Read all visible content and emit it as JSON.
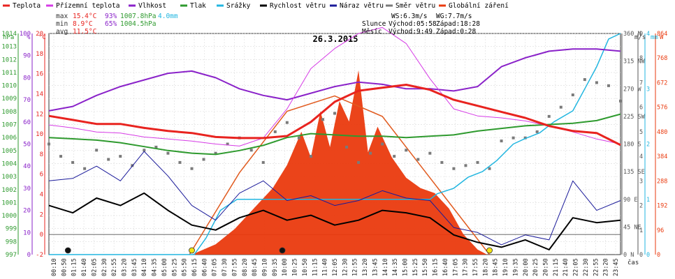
{
  "legend": [
    {
      "label": "Teplota",
      "color": "#e8231f"
    },
    {
      "label": "Přízemní teplota",
      "color": "#d63be6"
    },
    {
      "label": "Vlhkost",
      "color": "#8a22c9"
    },
    {
      "label": "Tlak",
      "color": "#2e9a2e"
    },
    {
      "label": "Srážky",
      "color": "#22b6e0"
    },
    {
      "label": "Rychlost větru",
      "color": "#000000"
    },
    {
      "label": "Náraz větru",
      "color": "#1a1a9a"
    },
    {
      "label": "Směr větru",
      "color": "#7a7a7a"
    },
    {
      "label": "Globální záření",
      "color": "#ea3a0e"
    }
  ],
  "stats": {
    "max_label": "max",
    "max_temp": "15.4°C",
    "max_hum": "93%",
    "max_press": "1007.8hPa",
    "rain": "4.0mm",
    "min_label": "min",
    "min_temp": "8.9°C",
    "min_hum": "65%",
    "min_press": "1004.5hPa",
    "avg_label": "avg",
    "avg_temp": "11.5°C"
  },
  "astro": {
    "ws": "WS:6.3m/s",
    "wg": "WG:7.7m/s",
    "sun_label": "Slunce",
    "sun_rise": "Východ:05:58",
    "sun_set": "Západ:18:28",
    "moon_label": "Měsíc",
    "moon_rise": "Východ:9:49",
    "moon_set": "Západ:0:28"
  },
  "chart_data": {
    "type": "line",
    "title": "26.3.2015",
    "axis_units": {
      "pressure": "hPa",
      "humidity": "%",
      "temperature": "°C",
      "wind": "m/s",
      "rain": "mm",
      "radiation": "W"
    },
    "xlabel": "čas",
    "x_ticks": [
      "00:10",
      "00:50",
      "01:15",
      "01:40",
      "02:05",
      "02:30",
      "02:55",
      "03:20",
      "03:45",
      "04:10",
      "04:35",
      "05:00",
      "05:25",
      "05:50",
      "06:15",
      "06:40",
      "07:05",
      "07:30",
      "07:55",
      "08:20",
      "08:45",
      "09:10",
      "09:35",
      "10:00",
      "10:25",
      "10:50",
      "11:15",
      "11:40",
      "12:05",
      "12:30",
      "12:55",
      "13:20",
      "13:45",
      "14:10",
      "14:35",
      "15:00",
      "15:25",
      "15:50",
      "16:15",
      "16:40",
      "17:05",
      "17:30",
      "17:55",
      "18:20",
      "18:45",
      "19:10",
      "19:35",
      "20:00",
      "20:25",
      "20:50",
      "21:15",
      "21:40",
      "22:05",
      "22:30",
      "22:55",
      "23:20",
      "23:45"
    ],
    "axes": {
      "pressure": {
        "ticks": [
          "997",
          "998",
          "999",
          "1000",
          "1001",
          "1002",
          "1003",
          "1004",
          "1005",
          "1006",
          "1007",
          "1008",
          "1009",
          "1010",
          "1011",
          "1012",
          "1013",
          "1014"
        ],
        "min": 997,
        "max": 1014
      },
      "humidity": {
        "ticks": [
          "0",
          "10",
          "20",
          "30",
          "40",
          "50",
          "60",
          "70",
          "80",
          "90",
          "100"
        ],
        "min": 0,
        "max": 100
      },
      "temperature": {
        "ticks": [
          "-2",
          "0",
          "2",
          "4",
          "6",
          "8",
          "10",
          "12",
          "14",
          "16",
          "18",
          "20"
        ],
        "min": -2,
        "max": 20
      },
      "direction": {
        "ticks": [
          "0 N",
          "45 NE",
          "90 E",
          "135 SE",
          "180 S",
          "225 SW",
          "270 W",
          "315 NW",
          "360 N"
        ],
        "min": 0,
        "max": 360
      },
      "wind": {
        "ticks": [
          "0",
          "1",
          "2",
          "3",
          "4",
          "5",
          "6",
          "7",
          "8",
          "9"
        ],
        "min": 0,
        "max": 9
      },
      "rain": {
        "ticks": [
          "0",
          "1",
          "2",
          "3",
          "4"
        ],
        "min": 0,
        "max": 4
      },
      "radiation": {
        "ticks": [
          "0",
          "96",
          "192",
          "288",
          "384",
          "480",
          "576",
          "672",
          "768",
          "864"
        ],
        "min": 0,
        "max": 864
      }
    },
    "series": [
      {
        "name": "Teplota",
        "axis": "temperature",
        "color": "#e8231f",
        "width": 3,
        "x": [
          0,
          1,
          2,
          3,
          4,
          5,
          6,
          7,
          8,
          9,
          10,
          11,
          12,
          13,
          14,
          15,
          16,
          17,
          18,
          19,
          20,
          21,
          22,
          23,
          24
        ],
        "y": [
          11.8,
          11.4,
          11.0,
          11.0,
          10.6,
          10.3,
          10.1,
          9.7,
          9.6,
          9.6,
          9.8,
          11.2,
          13.2,
          14.3,
          14.6,
          14.9,
          14.4,
          13.4,
          12.8,
          12.2,
          11.6,
          10.8,
          10.3,
          10.1,
          8.9
        ]
      },
      {
        "name": "Přízemní teplota",
        "axis": "temperature",
        "color": "#d63be6",
        "width": 1,
        "x": [
          0,
          1,
          2,
          3,
          4,
          5,
          6,
          7,
          8,
          9,
          10,
          11,
          12,
          13,
          14,
          15,
          16,
          17,
          18,
          19,
          20,
          21,
          22,
          23,
          24
        ],
        "y": [
          10.9,
          10.6,
          10.2,
          10.1,
          9.7,
          9.5,
          9.3,
          9.0,
          8.8,
          9.6,
          12.5,
          16.5,
          18.5,
          20.0,
          20.6,
          19.0,
          15.5,
          12.5,
          11.8,
          11.6,
          11.3,
          10.8,
          10.2,
          9.5,
          9.0
        ]
      },
      {
        "name": "Vlhkost",
        "axis": "humidity",
        "color": "#8a22c9",
        "width": 2,
        "x": [
          0,
          1,
          2,
          3,
          4,
          5,
          6,
          7,
          8,
          9,
          10,
          11,
          12,
          13,
          14,
          15,
          16,
          17,
          18,
          19,
          20,
          21,
          22,
          23,
          24
        ],
        "y": [
          65,
          67,
          72,
          76,
          79,
          82,
          83,
          80,
          75,
          72,
          70,
          73,
          76,
          78,
          77,
          75,
          75,
          74,
          76,
          85,
          89,
          92,
          93,
          93,
          92
        ]
      },
      {
        "name": "Tlak",
        "axis": "pressure",
        "color": "#2e9a2e",
        "width": 2,
        "x": [
          0,
          1,
          2,
          3,
          4,
          5,
          6,
          7,
          8,
          9,
          10,
          11,
          12,
          13,
          14,
          15,
          16,
          17,
          18,
          19,
          20,
          21,
          22,
          23,
          24
        ],
        "y": [
          1006.0,
          1005.9,
          1005.8,
          1005.6,
          1005.3,
          1005.0,
          1004.8,
          1004.7,
          1005.0,
          1005.4,
          1006.0,
          1006.3,
          1006.2,
          1006.1,
          1006.1,
          1006.0,
          1006.1,
          1006.2,
          1006.5,
          1006.7,
          1006.9,
          1007.0,
          1007.1,
          1007.3,
          1007.8
        ]
      },
      {
        "name": "Srážky",
        "axis": "rain",
        "color": "#22b6e0",
        "width": 1.5,
        "x": [
          0,
          6.1,
          6.6,
          7.2,
          7.9,
          8.5,
          9,
          10,
          12,
          14,
          16,
          16.3,
          17,
          17.6,
          18.2,
          18.8,
          19.5,
          20,
          20.6,
          21.2,
          22,
          22.5,
          23,
          23.5,
          24
        ],
        "y": [
          0,
          0,
          0.3,
          0.8,
          1.0,
          1.0,
          1.0,
          1.0,
          1.0,
          1.0,
          1.0,
          1.1,
          1.2,
          1.4,
          1.5,
          1.7,
          2.0,
          2.1,
          2.2,
          2.4,
          2.6,
          3.0,
          3.4,
          3.9,
          4.0
        ]
      },
      {
        "name": "Rychlost větru",
        "axis": "wind",
        "color": "#000000",
        "width": 2,
        "x": [
          0,
          1,
          2,
          3,
          4,
          5,
          6,
          7,
          8,
          9,
          10,
          11,
          12,
          13,
          14,
          15,
          16,
          17,
          18,
          19,
          20,
          21,
          22,
          23,
          24
        ],
        "y": [
          2.0,
          1.7,
          2.3,
          2.0,
          2.5,
          1.8,
          1.2,
          1.0,
          1.5,
          1.8,
          1.4,
          1.6,
          1.2,
          1.4,
          1.8,
          1.7,
          1.5,
          0.8,
          0.5,
          0.3,
          0.6,
          0.2,
          1.5,
          1.3,
          1.4
        ]
      },
      {
        "name": "Náraz větru",
        "axis": "wind",
        "color": "#1a1a9a",
        "width": 1,
        "x": [
          0,
          1,
          2,
          3,
          4,
          5,
          6,
          7,
          8,
          9,
          10,
          11,
          12,
          13,
          14,
          15,
          16,
          17,
          18,
          19,
          20,
          21,
          22,
          23,
          24
        ],
        "y": [
          3.0,
          3.1,
          3.6,
          3.0,
          4.2,
          3.2,
          2.0,
          1.4,
          2.5,
          3.0,
          2.2,
          2.4,
          2.0,
          2.2,
          2.6,
          2.3,
          2.2,
          1.1,
          0.9,
          0.4,
          0.8,
          0.6,
          3.0,
          1.8,
          2.2
        ]
      },
      {
        "name": "Globální záření",
        "axis": "radiation",
        "type": "area",
        "color": "#ea3a0e",
        "x": [
          6.0,
          7.0,
          7.8,
          8.6,
          9.4,
          10.0,
          10.6,
          11.0,
          11.4,
          11.8,
          12.2,
          12.6,
          13.0,
          13.4,
          13.8,
          14.4,
          15.0,
          15.6,
          16.2,
          16.8,
          17.4,
          18.0,
          18.4
        ],
        "y": [
          0,
          40,
          100,
          180,
          260,
          350,
          480,
          380,
          560,
          420,
          600,
          520,
          720,
          400,
          500,
          380,
          300,
          260,
          240,
          180,
          80,
          20,
          0
        ]
      },
      {
        "name": "Směr větru",
        "axis": "direction",
        "type": "scatter",
        "color": "#7a7a7a",
        "x": [
          0,
          0.5,
          1,
          1.5,
          2,
          2.5,
          3,
          3.5,
          4,
          4.5,
          5,
          5.5,
          6,
          6.5,
          7,
          7.5,
          8,
          8.5,
          9,
          9.5,
          10,
          10.5,
          11,
          11.5,
          12,
          12.5,
          13,
          13.5,
          14,
          14.5,
          15,
          15.5,
          16,
          16.5,
          17,
          17.5,
          18,
          18.5,
          19,
          19.5,
          20,
          20.5,
          21,
          21.5,
          22,
          22.5,
          23,
          23.5,
          24
        ],
        "y": [
          180,
          160,
          150,
          140,
          170,
          155,
          160,
          145,
          170,
          175,
          165,
          150,
          140,
          155,
          165,
          180,
          190,
          170,
          150,
          200,
          215,
          190,
          160,
          220,
          230,
          175,
          150,
          165,
          180,
          160,
          170,
          155,
          165,
          150,
          140,
          145,
          150,
          140,
          185,
          190,
          190,
          200,
          225,
          240,
          260,
          285,
          280,
          275,
          250
        ]
      }
    ],
    "radiation_clear_sky": {
      "x": [
        5.9,
        8,
        10,
        12,
        14,
        16,
        18.5
      ],
      "y": [
        0,
        320,
        560,
        620,
        540,
        300,
        0
      ]
    },
    "markers": [
      {
        "x": 0.8,
        "type": "moonset",
        "color": "#111111"
      },
      {
        "x": 6.0,
        "type": "sunrise",
        "color": "#f2e310"
      },
      {
        "x": 9.8,
        "type": "moonrise",
        "color": "#111111"
      },
      {
        "x": 18.5,
        "type": "sunset",
        "color": "#f2e310"
      }
    ]
  }
}
